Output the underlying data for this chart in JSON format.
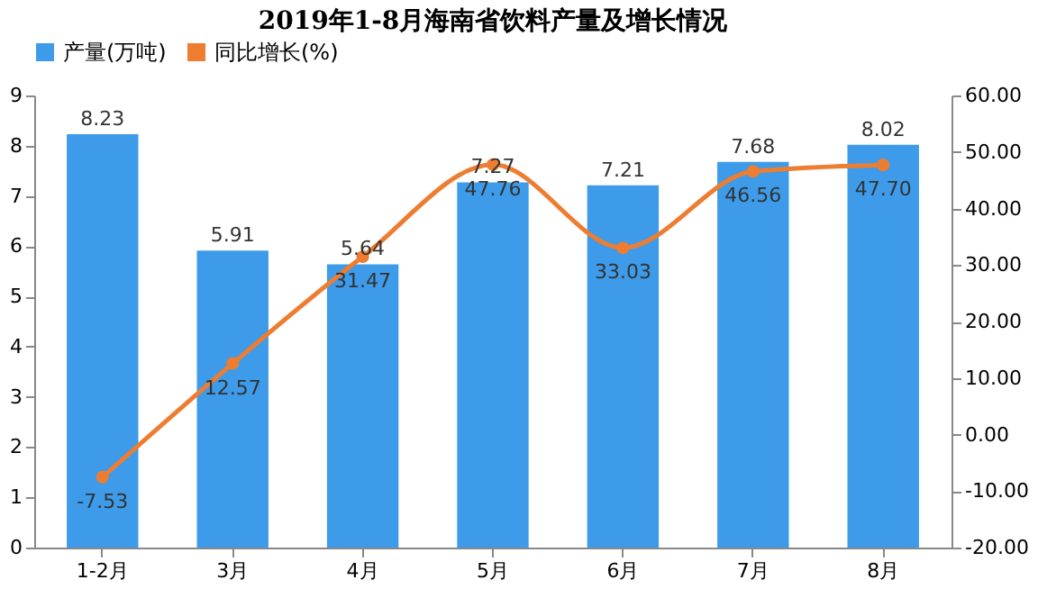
{
  "chart_data": {
    "type": "bar",
    "title": "2019年1-8月海南省饮料产量及增长情况",
    "categories": [
      "1-2月",
      "3月",
      "4月",
      "5月",
      "6月",
      "7月",
      "8月"
    ],
    "series": [
      {
        "name": "产量(万吨)",
        "color": "#3d9be9",
        "values": [
          8.23,
          5.91,
          5.64,
          7.27,
          7.21,
          7.68,
          8.02
        ],
        "value_labels": [
          "8.23",
          "5.91",
          "5.64",
          "7.27",
          "7.21",
          "7.68",
          "8.02"
        ]
      },
      {
        "name": "同比增长(%)",
        "type": "line",
        "axis": "y2",
        "color": "#ed7d31",
        "values": [
          -7.53,
          12.57,
          31.47,
          47.76,
          33.03,
          46.56,
          47.7
        ],
        "value_labels": [
          "-7.53",
          "12.57",
          "31.47",
          "47.76",
          "33.03",
          "46.56",
          "47.70"
        ]
      }
    ],
    "ylim": [
      0,
      9
    ],
    "yticks": [
      0,
      1,
      2,
      3,
      4,
      5,
      6,
      7,
      8,
      9
    ],
    "y2lim": [
      -20,
      60
    ],
    "y2ticks": [
      {
        "value": -20,
        "label": "-20.00"
      },
      {
        "value": -10,
        "label": "-10.00"
      },
      {
        "value": 0,
        "label": "0.00"
      },
      {
        "value": 10,
        "label": "10.00"
      },
      {
        "value": 20,
        "label": "20.00"
      },
      {
        "value": 30,
        "label": "30.00"
      },
      {
        "value": 40,
        "label": "40.00"
      },
      {
        "value": 50,
        "label": "50.00"
      },
      {
        "value": 60,
        "label": "60.00"
      }
    ],
    "legend": "top",
    "marker": "circle",
    "line_style": "solid",
    "grid": false
  }
}
